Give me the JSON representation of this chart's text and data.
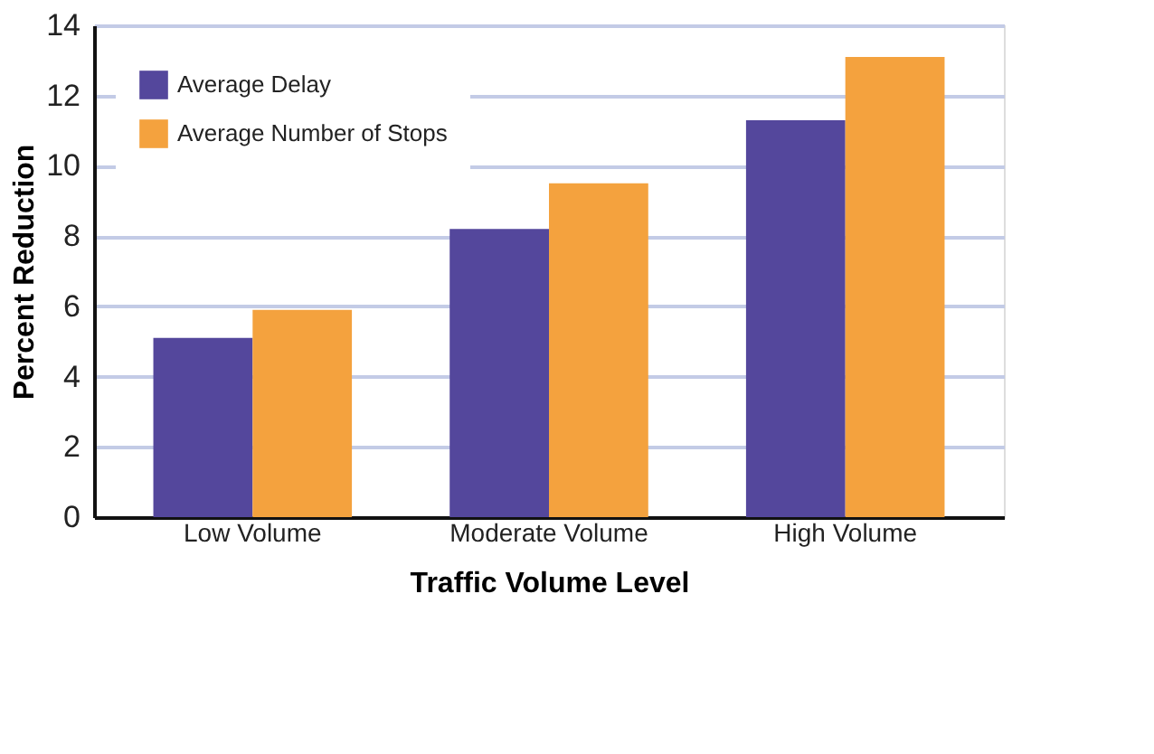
{
  "chart_data": {
    "type": "bar",
    "xlabel": "Traffic Volume Level",
    "ylabel": "Percent Reduction",
    "categories": [
      "Low Volume",
      "Moderate Volume",
      "High Volume"
    ],
    "series": [
      {
        "name": "Average Delay",
        "color": "#54479c",
        "values": [
          5.1,
          8.2,
          11.3
        ]
      },
      {
        "name": "Average Number of Stops",
        "color": "#f4a23e",
        "values": [
          5.9,
          9.5,
          13.1
        ]
      }
    ],
    "ylim": [
      0,
      14
    ],
    "yticks": [
      0,
      2,
      4,
      6,
      8,
      10,
      12,
      14
    ],
    "grid": "y",
    "legend": "top left"
  }
}
